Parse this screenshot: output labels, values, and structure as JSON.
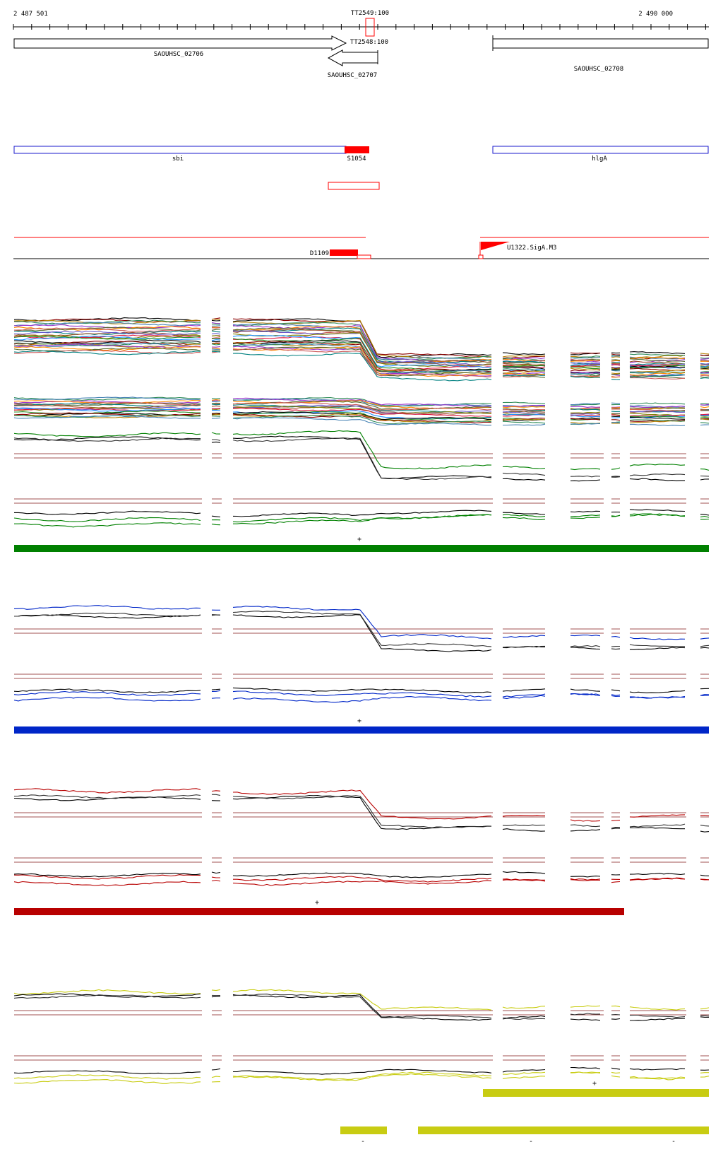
{
  "ruler": {
    "start": "2 487 501",
    "end": "2 490 000",
    "start_bp": 2487501,
    "end_bp": 2490000
  },
  "terminators": [
    {
      "label": "TT2549:100"
    },
    {
      "label": "TT2548:100"
    }
  ],
  "genes": [
    {
      "label": "SAOUHSC_02706",
      "strand": "+",
      "start_bp": 2487501,
      "end_bp": 2488750
    },
    {
      "label": "SAOUHSC_02707",
      "strand": "-",
      "start_bp": 2488580,
      "end_bp": 2488760
    },
    {
      "label": "SAOUHSC_02708",
      "strand": "+",
      "start_bp": 2489200,
      "end_bp": 2490000
    }
  ],
  "regions": [
    {
      "label": "sbi",
      "color": "#1a1acc",
      "start_bp": 2487501,
      "end_bp": 2488750
    },
    {
      "label": "S1054",
      "color": "#ff0000",
      "start_bp": 2488750,
      "end_bp": 2488830
    },
    {
      "label": "hlgA",
      "color": "#1a1acc",
      "start_bp": 2489200,
      "end_bp": 2490000
    }
  ],
  "features": [
    {
      "label": "D1109",
      "color": "#ff0000"
    },
    {
      "label": "U1322.SigA.M3",
      "color": "#ff0000"
    }
  ],
  "condition_blocks": [
    {
      "color": "#008000",
      "strand_marker": "+"
    },
    {
      "color": "#0026c8",
      "strand_marker": "+"
    },
    {
      "color": "#b80000",
      "strand_marker": "+"
    },
    {
      "color": "#c8cc12",
      "strand_marker": "+",
      "minus_marker": "-"
    }
  ],
  "colors": {
    "green": "#008000",
    "blue": "#0026c8",
    "red": "#b80000",
    "yellow": "#c8cc12",
    "threshold": "#a05050"
  }
}
